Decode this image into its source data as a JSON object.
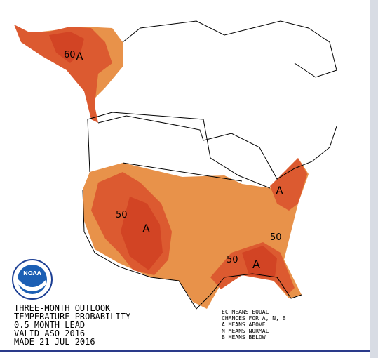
{
  "map_labels": [
    "60",
    "A",
    "50",
    "A",
    "A",
    "50",
    "A",
    "50"
  ],
  "logo": {
    "text": "NOAA"
  },
  "title_block": {
    "lines": [
      "THREE-MONTH OUTLOOK",
      "TEMPERATURE PROBABILITY",
      "0.5 MONTH LEAD",
      "VALID ASO 2016",
      "MADE 21 JUL 2016"
    ]
  },
  "legend": {
    "lines": [
      "EC MEANS EQUAL",
      "CHANCES FOR A, N, B",
      "A MEANS ABOVE",
      "N MEANS NORMAL",
      "B MEANS BELOW"
    ]
  }
}
